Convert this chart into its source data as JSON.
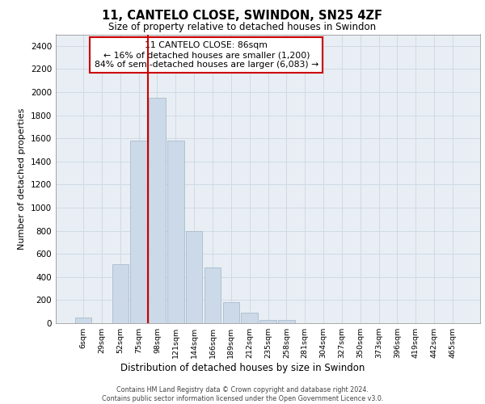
{
  "title": "11, CANTELO CLOSE, SWINDON, SN25 4ZF",
  "subtitle": "Size of property relative to detached houses in Swindon",
  "xlabel": "Distribution of detached houses by size in Swindon",
  "ylabel": "Number of detached properties",
  "categories": [
    "6sqm",
    "29sqm",
    "52sqm",
    "75sqm",
    "98sqm",
    "121sqm",
    "144sqm",
    "166sqm",
    "189sqm",
    "212sqm",
    "235sqm",
    "258sqm",
    "281sqm",
    "304sqm",
    "327sqm",
    "350sqm",
    "373sqm",
    "396sqm",
    "419sqm",
    "442sqm",
    "465sqm"
  ],
  "values": [
    50,
    0,
    510,
    1580,
    1950,
    1580,
    800,
    480,
    180,
    90,
    30,
    30,
    0,
    0,
    0,
    0,
    0,
    0,
    0,
    0,
    0
  ],
  "bar_color": "#ccd9e8",
  "bar_edge_color": "#a8bccc",
  "property_line_color": "#cc0000",
  "property_line_xindex": 4,
  "annotation_title": "11 CANTELO CLOSE: 86sqm",
  "annotation_line1": "← 16% of detached houses are smaller (1,200)",
  "annotation_line2": "84% of semi-detached houses are larger (6,083) →",
  "annotation_box_color": "#ffffff",
  "annotation_box_edge_color": "#cc0000",
  "ylim": [
    0,
    2500
  ],
  "yticks": [
    0,
    200,
    400,
    600,
    800,
    1000,
    1200,
    1400,
    1600,
    1800,
    2000,
    2200,
    2400
  ],
  "grid_color": "#d0dae4",
  "background_color": "#e8eef4",
  "footer1": "Contains HM Land Registry data © Crown copyright and database right 2024.",
  "footer2": "Contains public sector information licensed under the Open Government Licence v3.0."
}
